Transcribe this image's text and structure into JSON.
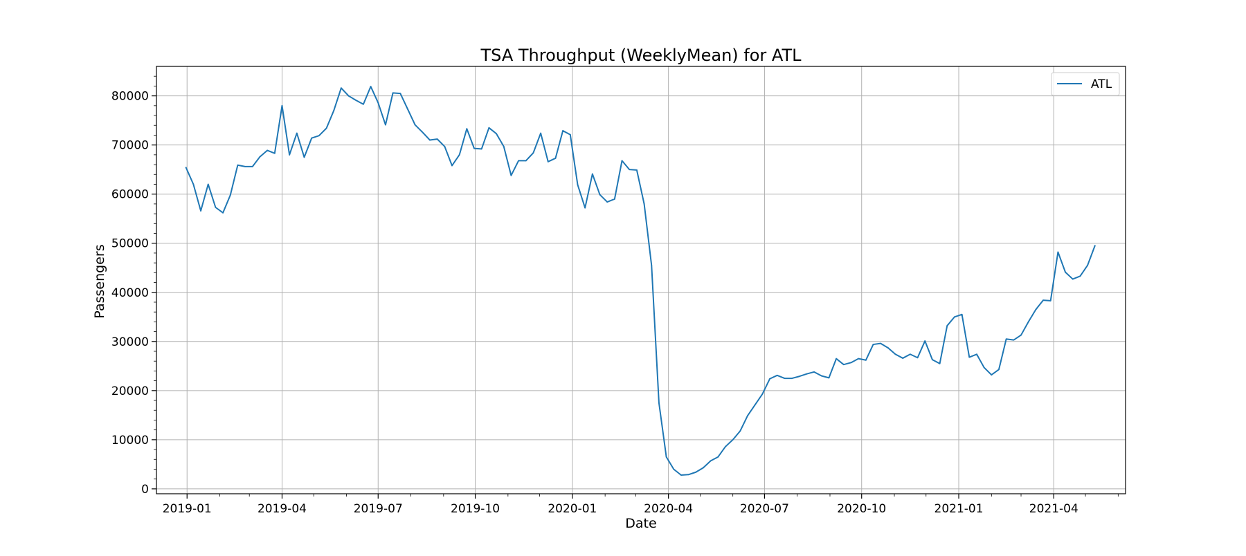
{
  "chart_data": {
    "type": "line",
    "title": "TSA Throughput (WeeklyMean) for ATL",
    "xlabel": "Date",
    "ylabel": "Passengers",
    "xlim": [
      "2018-12-03",
      "2021-06-08"
    ],
    "ylim": [
      -1000,
      86000
    ],
    "x_ticks": [
      {
        "label": "2019-01",
        "date": "2019-01-01"
      },
      {
        "label": "2019-04",
        "date": "2019-04-01"
      },
      {
        "label": "2019-07",
        "date": "2019-07-01"
      },
      {
        "label": "2019-10",
        "date": "2019-10-01"
      },
      {
        "label": "2020-01",
        "date": "2020-01-01"
      },
      {
        "label": "2020-04",
        "date": "2020-04-01"
      },
      {
        "label": "2020-07",
        "date": "2020-07-01"
      },
      {
        "label": "2020-10",
        "date": "2020-10-01"
      },
      {
        "label": "2021-01",
        "date": "2021-01-01"
      },
      {
        "label": "2021-04",
        "date": "2021-04-01"
      }
    ],
    "y_ticks": [
      0,
      10000,
      20000,
      30000,
      40000,
      50000,
      60000,
      70000,
      80000
    ],
    "grid": true,
    "legend_position": "top-right",
    "series": [
      {
        "name": "ATL",
        "color": "#1f77b4",
        "x": [
          "2018-12-31",
          "2019-01-07",
          "2019-01-14",
          "2019-01-21",
          "2019-01-28",
          "2019-02-04",
          "2019-02-11",
          "2019-02-18",
          "2019-02-25",
          "2019-03-04",
          "2019-03-11",
          "2019-03-18",
          "2019-03-25",
          "2019-04-01",
          "2019-04-08",
          "2019-04-15",
          "2019-04-22",
          "2019-04-29",
          "2019-05-06",
          "2019-05-13",
          "2019-05-20",
          "2019-05-27",
          "2019-06-03",
          "2019-06-10",
          "2019-06-17",
          "2019-06-24",
          "2019-07-01",
          "2019-07-08",
          "2019-07-15",
          "2019-07-22",
          "2019-07-29",
          "2019-08-05",
          "2019-08-12",
          "2019-08-19",
          "2019-08-26",
          "2019-09-02",
          "2019-09-09",
          "2019-09-16",
          "2019-09-23",
          "2019-09-30",
          "2019-10-07",
          "2019-10-14",
          "2019-10-21",
          "2019-10-28",
          "2019-11-04",
          "2019-11-11",
          "2019-11-18",
          "2019-11-25",
          "2019-12-02",
          "2019-12-09",
          "2019-12-16",
          "2019-12-23",
          "2019-12-30",
          "2020-01-06",
          "2020-01-13",
          "2020-01-20",
          "2020-01-27",
          "2020-02-03",
          "2020-02-10",
          "2020-02-17",
          "2020-02-24",
          "2020-03-02",
          "2020-03-09",
          "2020-03-16",
          "2020-03-23",
          "2020-03-30",
          "2020-04-06",
          "2020-04-13",
          "2020-04-20",
          "2020-04-27",
          "2020-05-04",
          "2020-05-11",
          "2020-05-18",
          "2020-05-25",
          "2020-06-01",
          "2020-06-08",
          "2020-06-15",
          "2020-06-22",
          "2020-06-29",
          "2020-07-06",
          "2020-07-13",
          "2020-07-20",
          "2020-07-27",
          "2020-08-03",
          "2020-08-10",
          "2020-08-17",
          "2020-08-24",
          "2020-08-31",
          "2020-09-07",
          "2020-09-14",
          "2020-09-21",
          "2020-09-28",
          "2020-10-05",
          "2020-10-12",
          "2020-10-19",
          "2020-10-26",
          "2020-11-02",
          "2020-11-09",
          "2020-11-16",
          "2020-11-23",
          "2020-11-30",
          "2020-12-07",
          "2020-12-14",
          "2020-12-21",
          "2020-12-28",
          "2021-01-04",
          "2021-01-11",
          "2021-01-18",
          "2021-01-25",
          "2021-02-01",
          "2021-02-08",
          "2021-02-15",
          "2021-02-22",
          "2021-03-01",
          "2021-03-08",
          "2021-03-15",
          "2021-03-22",
          "2021-03-29",
          "2021-04-05",
          "2021-04-12",
          "2021-04-19",
          "2021-04-26",
          "2021-05-03",
          "2021-05-10"
        ],
        "y": [
          65400,
          62000,
          56600,
          62000,
          57300,
          56200,
          59800,
          65900,
          65600,
          65600,
          67600,
          68900,
          68300,
          78000,
          68000,
          72400,
          67500,
          71400,
          71900,
          73400,
          77000,
          81600,
          80000,
          79100,
          78300,
          81900,
          78600,
          74100,
          80600,
          80500,
          77300,
          74100,
          72600,
          71000,
          71200,
          69700,
          65800,
          68000,
          73300,
          69300,
          69200,
          73500,
          72300,
          69700,
          63800,
          66800,
          66800,
          68400,
          72400,
          66600,
          67300,
          72900,
          72100,
          61900,
          57200,
          64100,
          59900,
          58400,
          59000,
          66800,
          65000,
          64900,
          58000,
          45500,
          17500,
          6500,
          4000,
          2800,
          2900,
          3400,
          4300,
          5700,
          6500,
          8600,
          10000,
          11800,
          14900,
          17100,
          19300,
          22400,
          23100,
          22500,
          22500,
          22900,
          23400,
          23800,
          23000,
          22600,
          26500,
          25300,
          25700,
          26500,
          26200,
          29400,
          29600,
          28700,
          27400,
          26600,
          27400,
          26700,
          30100,
          26300,
          25500,
          33200,
          35000,
          35500,
          26800,
          27400,
          24700,
          23200,
          24300,
          30500,
          30300,
          31300,
          34000,
          36500,
          38400,
          38300,
          48200,
          44100,
          42700,
          43300,
          45500,
          49500
        ]
      }
    ]
  }
}
